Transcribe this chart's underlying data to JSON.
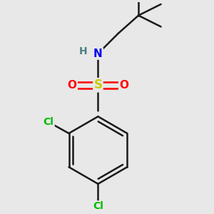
{
  "background_color": "#e8e8e8",
  "bond_color": "#1a1a1a",
  "atom_colors": {
    "S": "#cccc00",
    "O": "#ff0000",
    "N": "#0000ee",
    "H": "#4a8080",
    "Cl": "#00bb00",
    "C": "#1a1a1a"
  },
  "bond_width": 1.8,
  "dpi": 100,
  "figsize": [
    3.0,
    3.0
  ]
}
